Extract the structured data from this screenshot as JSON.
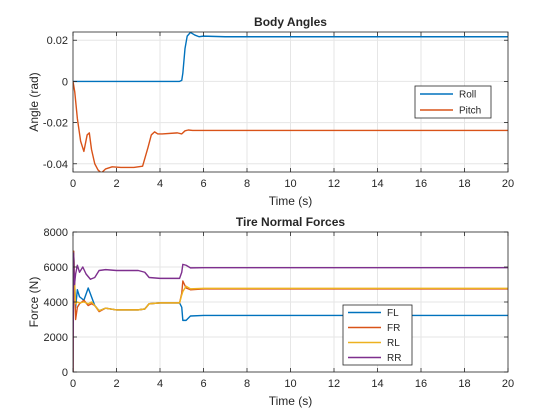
{
  "chart_data": [
    {
      "type": "line",
      "title": "Body Angles",
      "xlabel": "Time (s)",
      "ylabel": "Angle (rad)",
      "xlim": [
        0,
        20
      ],
      "ylim": [
        -0.044,
        0.024
      ],
      "xticks": [
        0,
        2,
        4,
        6,
        8,
        10,
        12,
        14,
        16,
        18,
        20
      ],
      "yticks": [
        -0.04,
        -0.02,
        0,
        0.02
      ],
      "ytick_labels": [
        "-0.04",
        "-0.02",
        "0",
        "0.02"
      ],
      "grid": true,
      "legend_position": "right",
      "series": [
        {
          "name": "Roll",
          "color": "#0072BD",
          "points": [
            [
              0,
              0
            ],
            [
              4.9,
              0
            ],
            [
              5.0,
              0.0005
            ],
            [
              5.05,
              0.004
            ],
            [
              5.15,
              0.016
            ],
            [
              5.25,
              0.022
            ],
            [
              5.4,
              0.0238
            ],
            [
              5.6,
              0.0225
            ],
            [
              5.8,
              0.0217
            ],
            [
              6.0,
              0.022
            ],
            [
              7,
              0.0217
            ],
            [
              20,
              0.0217
            ]
          ]
        },
        {
          "name": "Pitch",
          "color": "#D95319",
          "points": [
            [
              0,
              0
            ],
            [
              0.08,
              -0.005
            ],
            [
              0.2,
              -0.018
            ],
            [
              0.35,
              -0.029
            ],
            [
              0.5,
              -0.034
            ],
            [
              0.65,
              -0.026
            ],
            [
              0.75,
              -0.025
            ],
            [
              0.85,
              -0.033
            ],
            [
              1.0,
              -0.04
            ],
            [
              1.15,
              -0.043
            ],
            [
              1.3,
              -0.0445
            ],
            [
              1.5,
              -0.0425
            ],
            [
              1.8,
              -0.0415
            ],
            [
              2.2,
              -0.0418
            ],
            [
              2.8,
              -0.0418
            ],
            [
              3.2,
              -0.0412
            ],
            [
              3.45,
              -0.032
            ],
            [
              3.6,
              -0.026
            ],
            [
              3.75,
              -0.0245
            ],
            [
              3.9,
              -0.0255
            ],
            [
              4.1,
              -0.0255
            ],
            [
              4.8,
              -0.025
            ],
            [
              5.0,
              -0.0255
            ],
            [
              5.15,
              -0.024
            ],
            [
              5.3,
              -0.0236
            ],
            [
              5.5,
              -0.0238
            ],
            [
              20,
              -0.0238
            ]
          ]
        }
      ]
    },
    {
      "type": "line",
      "title": "Tire Normal Forces",
      "xlabel": "Time (s)",
      "ylabel": "Force (N)",
      "xlim": [
        0,
        20
      ],
      "ylim": [
        0,
        8000
      ],
      "xticks": [
        0,
        2,
        4,
        6,
        8,
        10,
        12,
        14,
        16,
        18,
        20
      ],
      "yticks": [
        0,
        2000,
        4000,
        6000,
        8000
      ],
      "ytick_labels": [
        "0",
        "2000",
        "4000",
        "6000",
        "8000"
      ],
      "grid": true,
      "legend_position": "bottom-right",
      "series": [
        {
          "name": "FL",
          "color": "#0072BD",
          "points": [
            [
              0,
              0
            ],
            [
              0.03,
              6900
            ],
            [
              0.07,
              5200
            ],
            [
              0.12,
              3700
            ],
            [
              0.2,
              4700
            ],
            [
              0.3,
              4300
            ],
            [
              0.5,
              4100
            ],
            [
              0.7,
              4800
            ],
            [
              0.85,
              4300
            ],
            [
              1.0,
              3800
            ],
            [
              1.2,
              3500
            ],
            [
              1.5,
              3650
            ],
            [
              2.0,
              3550
            ],
            [
              3.0,
              3550
            ],
            [
              3.3,
              3600
            ],
            [
              3.5,
              3900
            ],
            [
              4.0,
              3950
            ],
            [
              4.9,
              3950
            ],
            [
              5.0,
              3700
            ],
            [
              5.05,
              2950
            ],
            [
              5.2,
              2950
            ],
            [
              5.4,
              3200
            ],
            [
              6.0,
              3230
            ],
            [
              20,
              3230
            ]
          ]
        },
        {
          "name": "FR",
          "color": "#D95319",
          "points": [
            [
              0,
              0
            ],
            [
              0.03,
              6900
            ],
            [
              0.07,
              5200
            ],
            [
              0.12,
              3000
            ],
            [
              0.2,
              3700
            ],
            [
              0.3,
              3900
            ],
            [
              0.5,
              4100
            ],
            [
              0.7,
              3800
            ],
            [
              0.85,
              3900
            ],
            [
              1.0,
              3800
            ],
            [
              1.2,
              3450
            ],
            [
              1.5,
              3650
            ],
            [
              2.0,
              3550
            ],
            [
              3.0,
              3550
            ],
            [
              3.3,
              3600
            ],
            [
              3.5,
              3900
            ],
            [
              4.0,
              3950
            ],
            [
              4.9,
              3950
            ],
            [
              5.0,
              4500
            ],
            [
              5.05,
              5200
            ],
            [
              5.2,
              4800
            ],
            [
              5.4,
              4700
            ],
            [
              6.0,
              4750
            ],
            [
              20,
              4750
            ]
          ]
        },
        {
          "name": "RL",
          "color": "#EDB120",
          "points": [
            [
              0,
              0
            ],
            [
              0.03,
              6800
            ],
            [
              0.07,
              5200
            ],
            [
              0.12,
              3900
            ],
            [
              0.2,
              4000
            ],
            [
              0.3,
              3950
            ],
            [
              0.5,
              4000
            ],
            [
              0.7,
              3900
            ],
            [
              0.85,
              4000
            ],
            [
              1.0,
              3800
            ],
            [
              1.2,
              3500
            ],
            [
              1.5,
              3650
            ],
            [
              2.0,
              3550
            ],
            [
              3.0,
              3550
            ],
            [
              3.3,
              3600
            ],
            [
              3.5,
              3900
            ],
            [
              4.0,
              3950
            ],
            [
              4.9,
              3950
            ],
            [
              5.0,
              4400
            ],
            [
              5.05,
              4600
            ],
            [
              5.2,
              4900
            ],
            [
              5.4,
              4750
            ],
            [
              6.0,
              4780
            ],
            [
              20,
              4780
            ]
          ]
        },
        {
          "name": "RR",
          "color": "#7E2F8E",
          "points": [
            [
              0,
              0
            ],
            [
              0.03,
              6800
            ],
            [
              0.07,
              5000
            ],
            [
              0.12,
              5600
            ],
            [
              0.2,
              6100
            ],
            [
              0.3,
              5700
            ],
            [
              0.45,
              6000
            ],
            [
              0.6,
              5600
            ],
            [
              0.8,
              5300
            ],
            [
              1.0,
              5400
            ],
            [
              1.2,
              5800
            ],
            [
              1.5,
              5850
            ],
            [
              2.0,
              5800
            ],
            [
              3.0,
              5800
            ],
            [
              3.3,
              5700
            ],
            [
              3.5,
              5400
            ],
            [
              4.0,
              5350
            ],
            [
              4.9,
              5350
            ],
            [
              5.0,
              5700
            ],
            [
              5.05,
              6150
            ],
            [
              5.2,
              6100
            ],
            [
              5.4,
              5950
            ],
            [
              6.0,
              5960
            ],
            [
              20,
              5960
            ]
          ]
        }
      ]
    }
  ]
}
